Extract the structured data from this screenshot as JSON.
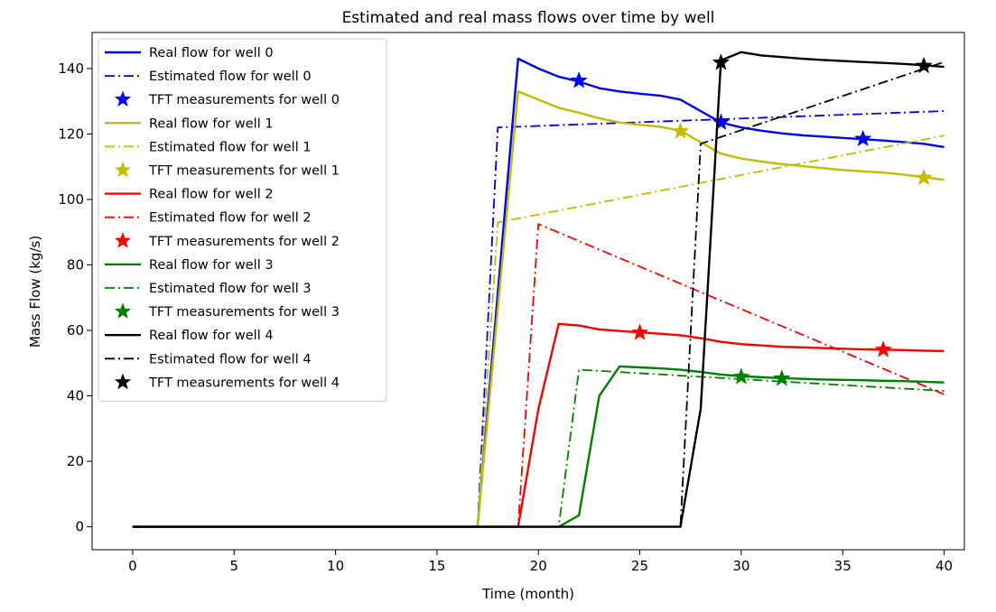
{
  "chart_data": {
    "type": "line",
    "title": "Estimated and real mass flows over time by well",
    "xlabel": "Time (month)",
    "ylabel": "Mass Flow (kg/s)",
    "xlim": [
      -2,
      41
    ],
    "ylim": [
      -7,
      151
    ],
    "xticks": [
      0,
      5,
      10,
      15,
      20,
      25,
      30,
      35,
      40
    ],
    "xtick_labels": [
      "0",
      "5",
      "10",
      "15",
      "20",
      "25",
      "30",
      "35",
      "40"
    ],
    "yticks": [
      0,
      20,
      40,
      60,
      80,
      100,
      120,
      140
    ],
    "ytick_labels": [
      "0",
      "20",
      "40",
      "60",
      "80",
      "100",
      "120",
      "140"
    ],
    "grid": false,
    "legend_position": "upper-left",
    "series": [
      {
        "name": "Real flow for well 0",
        "kind": "real",
        "color": "#0000ff",
        "points": [
          [
            0,
            0
          ],
          [
            17,
            0
          ],
          [
            19,
            143
          ],
          [
            20,
            140
          ],
          [
            21,
            137.5
          ],
          [
            22,
            136
          ],
          [
            23,
            134
          ],
          [
            24,
            133
          ],
          [
            25,
            132.3
          ],
          [
            26,
            131.7
          ],
          [
            27,
            130.5
          ],
          [
            28,
            127
          ],
          [
            29,
            123.5
          ],
          [
            30,
            122
          ],
          [
            31,
            121
          ],
          [
            32,
            120.2
          ],
          [
            33,
            119.6
          ],
          [
            34,
            119.2
          ],
          [
            35,
            118.8
          ],
          [
            36,
            118.4
          ],
          [
            37,
            118
          ],
          [
            38,
            117.5
          ],
          [
            39,
            117
          ],
          [
            40,
            116
          ]
        ]
      },
      {
        "name": "Estimated flow for well 0",
        "kind": "estimated",
        "color": "#0000ff",
        "points": [
          [
            0,
            0
          ],
          [
            17,
            0
          ],
          [
            18,
            122
          ],
          [
            40,
            127
          ]
        ]
      },
      {
        "name": "TFT measurements for well 0",
        "kind": "measurement",
        "color": "#0000ff",
        "points": [
          [
            22,
            136.3
          ],
          [
            29,
            123.5
          ],
          [
            36,
            118.5
          ]
        ]
      },
      {
        "name": "Real flow for well 1",
        "kind": "real",
        "color": "#bfbf00",
        "points": [
          [
            0,
            0
          ],
          [
            17,
            0
          ],
          [
            19,
            133
          ],
          [
            20,
            130.5
          ],
          [
            21,
            128
          ],
          [
            22,
            126.5
          ],
          [
            23,
            124.8
          ],
          [
            24,
            123.5
          ],
          [
            25,
            122.8
          ],
          [
            26,
            122.2
          ],
          [
            27,
            121
          ],
          [
            28,
            117.5
          ],
          [
            29,
            114
          ],
          [
            30,
            112.5
          ],
          [
            31,
            111.6
          ],
          [
            32,
            110.8
          ],
          [
            33,
            110.2
          ],
          [
            34,
            109.6
          ],
          [
            35,
            109
          ],
          [
            36,
            108.6
          ],
          [
            37,
            108.2
          ],
          [
            38,
            107.6
          ],
          [
            39,
            106.8
          ],
          [
            40,
            106
          ]
        ]
      },
      {
        "name": "Estimated flow for well 1",
        "kind": "estimated",
        "color": "#bfbf00",
        "points": [
          [
            0,
            0
          ],
          [
            17,
            0
          ],
          [
            18,
            93
          ],
          [
            40,
            119.5
          ]
        ]
      },
      {
        "name": "TFT measurements for well 1",
        "kind": "measurement",
        "color": "#bfbf00",
        "points": [
          [
            27,
            120.8
          ],
          [
            39,
            106.6
          ]
        ]
      },
      {
        "name": "Real flow for well 2",
        "kind": "real",
        "color": "#ff0000",
        "points": [
          [
            0,
            0
          ],
          [
            19,
            0
          ],
          [
            20,
            36
          ],
          [
            21,
            62
          ],
          [
            22,
            61.5
          ],
          [
            23,
            60.3
          ],
          [
            24,
            59.8
          ],
          [
            25,
            59.4
          ],
          [
            26,
            59
          ],
          [
            27,
            58.5
          ],
          [
            28,
            57.6
          ],
          [
            29,
            56.5
          ],
          [
            30,
            55.8
          ],
          [
            31,
            55.4
          ],
          [
            32,
            55
          ],
          [
            33,
            54.8
          ],
          [
            34,
            54.6
          ],
          [
            35,
            54.4
          ],
          [
            36,
            54.2
          ],
          [
            37,
            54.1
          ],
          [
            38,
            54
          ],
          [
            39,
            53.8
          ],
          [
            40,
            53.7
          ]
        ]
      },
      {
        "name": "Estimated flow for well 2",
        "kind": "estimated",
        "color": "#ff0000",
        "points": [
          [
            0,
            0
          ],
          [
            19,
            0
          ],
          [
            20,
            92.5
          ],
          [
            40,
            40.5
          ]
        ]
      },
      {
        "name": "TFT measurements for well 2",
        "kind": "measurement",
        "color": "#ff0000",
        "points": [
          [
            25,
            59.3
          ],
          [
            37,
            54.1
          ]
        ]
      },
      {
        "name": "Real flow for well 3",
        "kind": "real",
        "color": "#008000",
        "points": [
          [
            0,
            0
          ],
          [
            21,
            0
          ],
          [
            22,
            3.5
          ],
          [
            23,
            40
          ],
          [
            24,
            49
          ],
          [
            25,
            48.7
          ],
          [
            26,
            48.4
          ],
          [
            27,
            48
          ],
          [
            28,
            47.3
          ],
          [
            29,
            46.5
          ],
          [
            30,
            46
          ],
          [
            31,
            45.7
          ],
          [
            32,
            45.4
          ],
          [
            33,
            45.2
          ],
          [
            34,
            45
          ],
          [
            35,
            44.9
          ],
          [
            36,
            44.8
          ],
          [
            37,
            44.6
          ],
          [
            38,
            44.5
          ],
          [
            39,
            44.3
          ],
          [
            40,
            44.1
          ]
        ]
      },
      {
        "name": "Estimated flow for well 3",
        "kind": "estimated",
        "color": "#008000",
        "points": [
          [
            0,
            0
          ],
          [
            21,
            0
          ],
          [
            22,
            48
          ],
          [
            40,
            41.5
          ]
        ]
      },
      {
        "name": "TFT measurements for well 3",
        "kind": "measurement",
        "color": "#008000",
        "points": [
          [
            30,
            45.8
          ],
          [
            32,
            45.3
          ]
        ]
      },
      {
        "name": "Real flow for well 4",
        "kind": "real",
        "color": "#000000",
        "points": [
          [
            0,
            0
          ],
          [
            27,
            0
          ],
          [
            28,
            36
          ],
          [
            29,
            142.5
          ],
          [
            30,
            145
          ],
          [
            31,
            144
          ],
          [
            32,
            143.5
          ],
          [
            33,
            143
          ],
          [
            34,
            142.6
          ],
          [
            35,
            142.3
          ],
          [
            36,
            142
          ],
          [
            37,
            141.7
          ],
          [
            38,
            141.4
          ],
          [
            39,
            141
          ],
          [
            40,
            140.5
          ]
        ]
      },
      {
        "name": "Estimated flow for well 4",
        "kind": "estimated",
        "color": "#000000",
        "points": [
          [
            0,
            0
          ],
          [
            27,
            0
          ],
          [
            28,
            117
          ],
          [
            40,
            142
          ]
        ]
      },
      {
        "name": "TFT measurements for well 4",
        "kind": "measurement",
        "color": "#000000",
        "points": [
          [
            29,
            141.8
          ],
          [
            39,
            140.8
          ]
        ]
      }
    ]
  }
}
